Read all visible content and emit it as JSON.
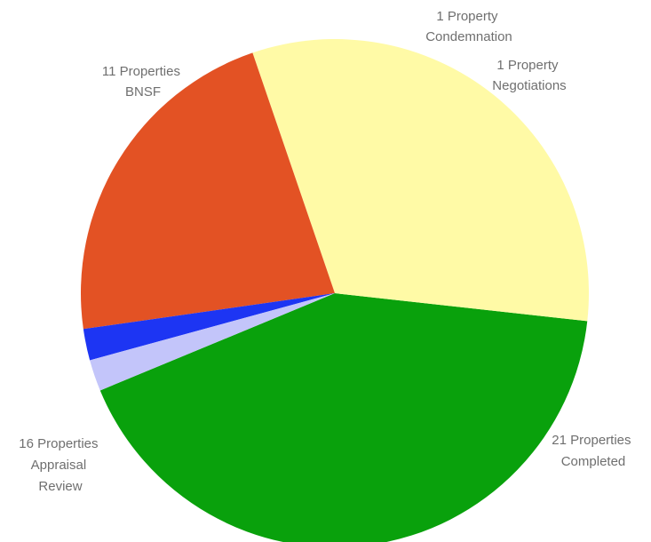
{
  "chart_data": {
    "type": "pie",
    "slices": [
      {
        "count_label": "21 Properties",
        "category": [
          "Completed"
        ],
        "value": 21,
        "color": "#09a10c"
      },
      {
        "count_label": "16 Properties",
        "category": [
          "Appraisal",
          "Review"
        ],
        "value": 16,
        "color": "#fffaa6"
      },
      {
        "count_label": "11 Properties",
        "category": [
          "BNSF"
        ],
        "value": 11,
        "color": "#e35224"
      },
      {
        "count_label": "1 Property",
        "category": [
          "Condemnation"
        ],
        "value": 1,
        "color": "#1d35f3"
      },
      {
        "count_label": "1 Property",
        "category": [
          "Negotiations"
        ],
        "value": 1,
        "color": "#c3c5fa"
      }
    ]
  }
}
